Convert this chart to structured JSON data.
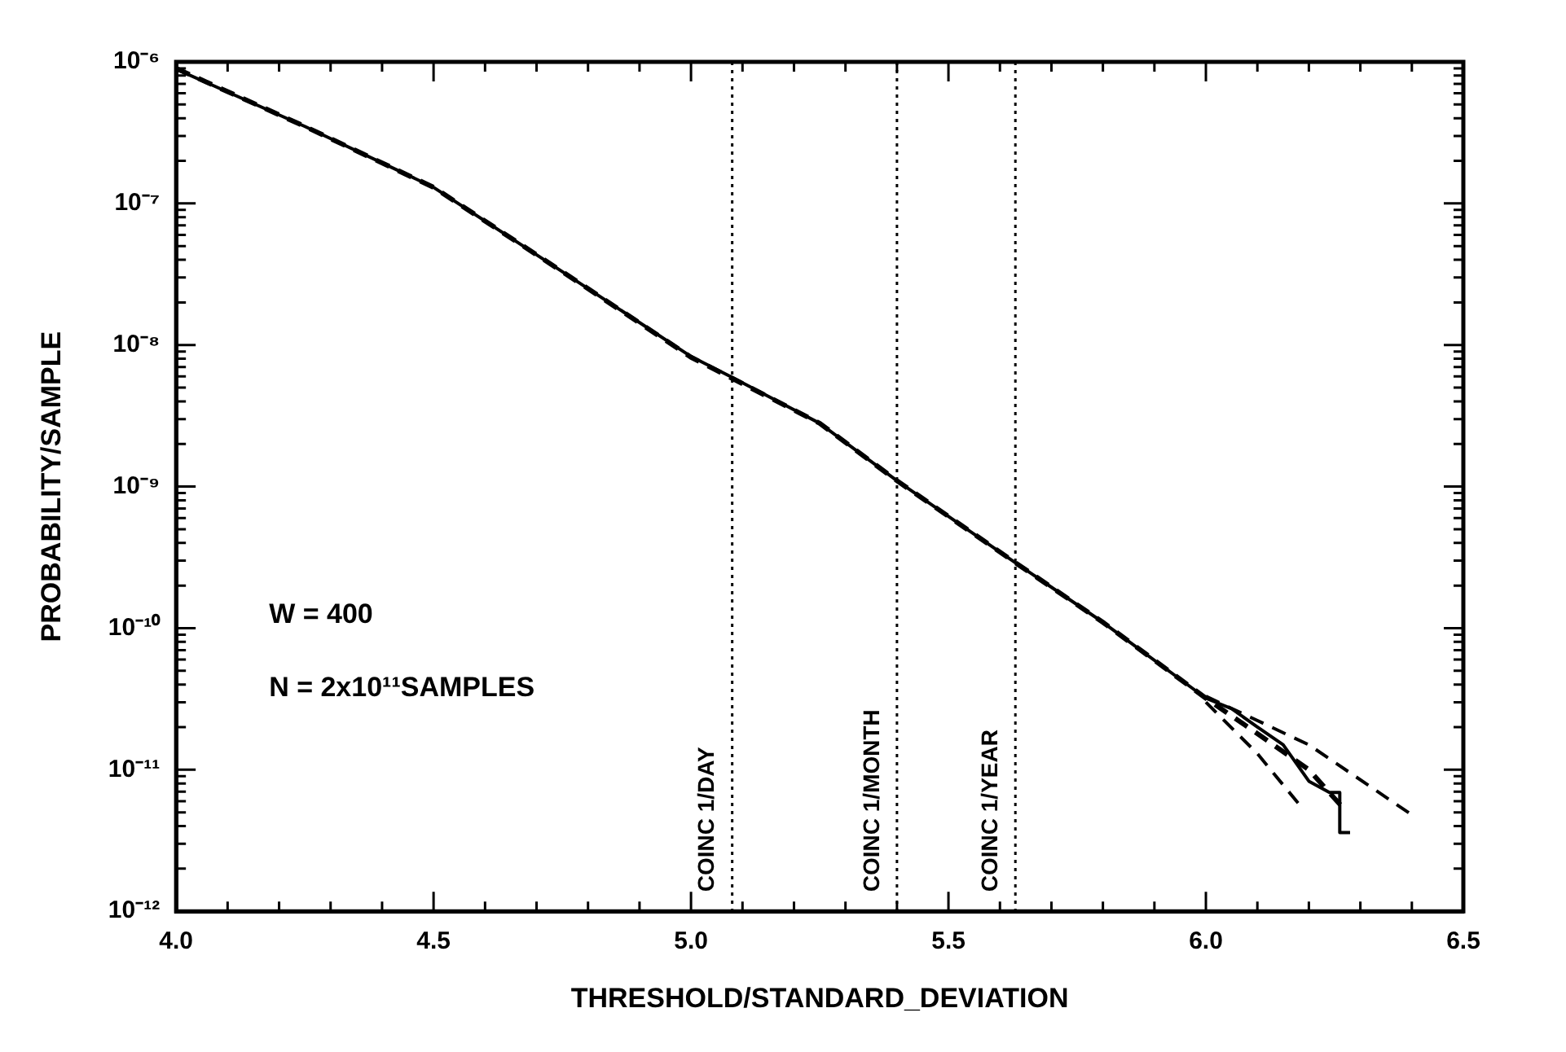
{
  "chart_data": {
    "type": "line",
    "xlabel": "THRESHOLD/STANDARD_DEVIATION",
    "ylabel": "PROBABILITY/SAMPLE",
    "log": "y",
    "grid": false,
    "legend": false,
    "marker": "none",
    "xlim": [
      4.0,
      6.5
    ],
    "ylim": [
      1e-12,
      1e-06
    ],
    "xticks": [
      {
        "value": 4.0,
        "label": "4.0"
      },
      {
        "value": 4.1,
        "label": null
      },
      {
        "value": 4.2,
        "label": null
      },
      {
        "value": 4.3,
        "label": null
      },
      {
        "value": 4.4,
        "label": null
      },
      {
        "value": 4.5,
        "label": "4.5"
      },
      {
        "value": 4.6,
        "label": null
      },
      {
        "value": 4.7,
        "label": null
      },
      {
        "value": 4.8,
        "label": null
      },
      {
        "value": 4.9,
        "label": null
      },
      {
        "value": 5.0,
        "label": "5.0"
      },
      {
        "value": 5.1,
        "label": null
      },
      {
        "value": 5.2,
        "label": null
      },
      {
        "value": 5.3,
        "label": null
      },
      {
        "value": 5.4,
        "label": null
      },
      {
        "value": 5.5,
        "label": "5.5"
      },
      {
        "value": 5.6,
        "label": null
      },
      {
        "value": 5.7,
        "label": null
      },
      {
        "value": 5.8,
        "label": null
      },
      {
        "value": 5.9,
        "label": null
      },
      {
        "value": 6.0,
        "label": "6.0"
      },
      {
        "value": 6.1,
        "label": null
      },
      {
        "value": 6.2,
        "label": null
      },
      {
        "value": 6.3,
        "label": null
      },
      {
        "value": 6.4,
        "label": null
      },
      {
        "value": 6.5,
        "label": "6.5"
      }
    ],
    "yticks": [
      {
        "value": 1e-12,
        "label": "10⁻¹²"
      },
      {
        "value": 2e-12,
        "label": null
      },
      {
        "value": 3e-12,
        "label": null
      },
      {
        "value": 4e-12,
        "label": null
      },
      {
        "value": 5e-12,
        "label": null
      },
      {
        "value": 6e-12,
        "label": null
      },
      {
        "value": 7e-12,
        "label": null
      },
      {
        "value": 8e-12,
        "label": null
      },
      {
        "value": 9e-12,
        "label": null
      },
      {
        "value": 1e-11,
        "label": "10⁻¹¹"
      },
      {
        "value": 2e-11,
        "label": null
      },
      {
        "value": 3e-11,
        "label": null
      },
      {
        "value": 4e-11,
        "label": null
      },
      {
        "value": 5e-11,
        "label": null
      },
      {
        "value": 6e-11,
        "label": null
      },
      {
        "value": 7e-11,
        "label": null
      },
      {
        "value": 8e-11,
        "label": null
      },
      {
        "value": 9e-11,
        "label": null
      },
      {
        "value": 1e-10,
        "label": "10⁻¹⁰"
      },
      {
        "value": 2e-10,
        "label": null
      },
      {
        "value": 3e-10,
        "label": null
      },
      {
        "value": 4e-10,
        "label": null
      },
      {
        "value": 5e-10,
        "label": null
      },
      {
        "value": 6e-10,
        "label": null
      },
      {
        "value": 7e-10,
        "label": null
      },
      {
        "value": 8e-10,
        "label": null
      },
      {
        "value": 9e-10,
        "label": null
      },
      {
        "value": 1e-09,
        "label": "10⁻⁹"
      },
      {
        "value": 2e-09,
        "label": null
      },
      {
        "value": 3e-09,
        "label": null
      },
      {
        "value": 4e-09,
        "label": null
      },
      {
        "value": 5e-09,
        "label": null
      },
      {
        "value": 6e-09,
        "label": null
      },
      {
        "value": 7e-09,
        "label": null
      },
      {
        "value": 8e-09,
        "label": null
      },
      {
        "value": 9e-09,
        "label": null
      },
      {
        "value": 1e-08,
        "label": "10⁻⁸"
      },
      {
        "value": 2e-08,
        "label": null
      },
      {
        "value": 3e-08,
        "label": null
      },
      {
        "value": 4e-08,
        "label": null
      },
      {
        "value": 5e-08,
        "label": null
      },
      {
        "value": 6e-08,
        "label": null
      },
      {
        "value": 7e-08,
        "label": null
      },
      {
        "value": 8e-08,
        "label": null
      },
      {
        "value": 9e-08,
        "label": null
      },
      {
        "value": 1e-07,
        "label": "10⁻⁷"
      },
      {
        "value": 2e-07,
        "label": null
      },
      {
        "value": 3e-07,
        "label": null
      },
      {
        "value": 4e-07,
        "label": null
      },
      {
        "value": 5e-07,
        "label": null
      },
      {
        "value": 6e-07,
        "label": null
      },
      {
        "value": 7e-07,
        "label": null
      },
      {
        "value": 8e-07,
        "label": null
      },
      {
        "value": 9e-07,
        "label": null
      },
      {
        "value": 1e-06,
        "label": "10⁻⁶"
      }
    ],
    "series": [
      {
        "color": "#000000",
        "line_style": "solid",
        "x": [
          4.0,
          4.25,
          4.5,
          4.75,
          5.0,
          5.08,
          5.25,
          5.4,
          5.63,
          5.8,
          6.0,
          6.05,
          6.1,
          6.15,
          6.2,
          6.24,
          6.26,
          6.26,
          6.28
        ],
        "values": [
          8.9e-07,
          3.5e-07,
          1.3e-07,
          3.3e-08,
          8.3e-09,
          5.9e-09,
          2.8e-09,
          1.1e-09,
          2.9e-10,
          1.1e-10,
          3.2e-11,
          2.7e-11,
          2e-11,
          1.5e-11,
          8.3e-12,
          6.9e-12,
          6.9e-12,
          3.6e-12,
          3.6e-12
        ]
      },
      {
        "color": "#000000",
        "line_style": "dashed",
        "x": [
          4.0,
          4.25,
          4.5,
          4.75,
          5.0,
          5.25,
          5.4,
          5.63,
          5.8,
          6.0,
          6.1,
          6.2,
          6.27
        ],
        "values": [
          9e-07,
          3.5e-07,
          1.3e-07,
          3.3e-08,
          8.2e-09,
          2.8e-09,
          1.1e-09,
          2.9e-10,
          1.1e-10,
          3.2e-11,
          1.8e-11,
          1e-11,
          5.2e-12
        ]
      },
      {
        "color": "#000000",
        "line_style": "dashed",
        "x": [
          6.0,
          6.2,
          6.4
        ],
        "values": [
          3.3e-11,
          1.5e-11,
          4.8e-12
        ]
      },
      {
        "color": "#000000",
        "line_style": "dashed",
        "x": [
          6.0,
          6.1,
          6.19
        ],
        "values": [
          3e-11,
          1.3e-11,
          5.2e-12
        ]
      }
    ],
    "ref_lines": [
      {
        "axis": "x",
        "value": 5.08,
        "label": "COINC 1/DAY",
        "line_style": "dotted"
      },
      {
        "axis": "x",
        "value": 5.4,
        "label": "COINC 1/MONTH",
        "line_style": "dotted"
      },
      {
        "axis": "x",
        "value": 5.63,
        "label": "COINC 1/YEAR",
        "line_style": "dotted"
      }
    ],
    "annotations": [
      "W = 400",
      "N = 2x10¹¹SAMPLES"
    ]
  }
}
